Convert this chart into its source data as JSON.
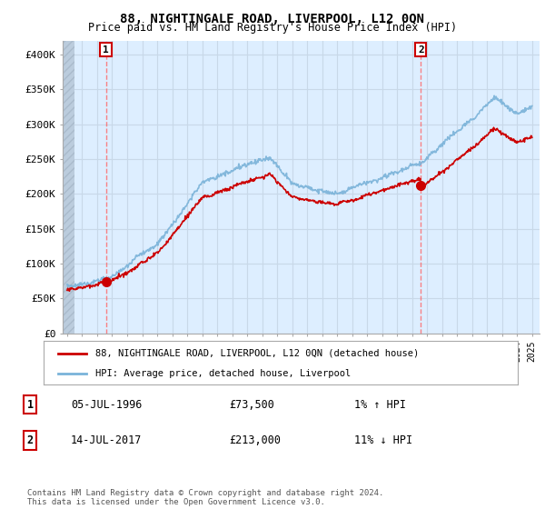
{
  "title": "88, NIGHTINGALE ROAD, LIVERPOOL, L12 0QN",
  "subtitle": "Price paid vs. HM Land Registry's House Price Index (HPI)",
  "ylim": [
    0,
    420000
  ],
  "yticks": [
    0,
    50000,
    100000,
    150000,
    200000,
    250000,
    300000,
    350000,
    400000
  ],
  "ytick_labels": [
    "£0",
    "£50K",
    "£100K",
    "£150K",
    "£200K",
    "£250K",
    "£300K",
    "£350K",
    "£400K"
  ],
  "sale1_date": "05-JUL-1996",
  "sale1_price": 73500,
  "sale1_hpi_pct": "1% ↑ HPI",
  "sale2_date": "14-JUL-2017",
  "sale2_price": 213000,
  "sale2_hpi_pct": "11% ↓ HPI",
  "legend1": "88, NIGHTINGALE ROAD, LIVERPOOL, L12 0QN (detached house)",
  "legend2": "HPI: Average price, detached house, Liverpool",
  "footer": "Contains HM Land Registry data © Crown copyright and database right 2024.\nThis data is licensed under the Open Government Licence v3.0.",
  "hpi_color": "#7ab3d9",
  "price_color": "#cc0000",
  "marker_color": "#cc0000",
  "grid_color": "#c8d8e8",
  "bg_color": "#ddeeff",
  "hatch_color": "#bbccdd"
}
